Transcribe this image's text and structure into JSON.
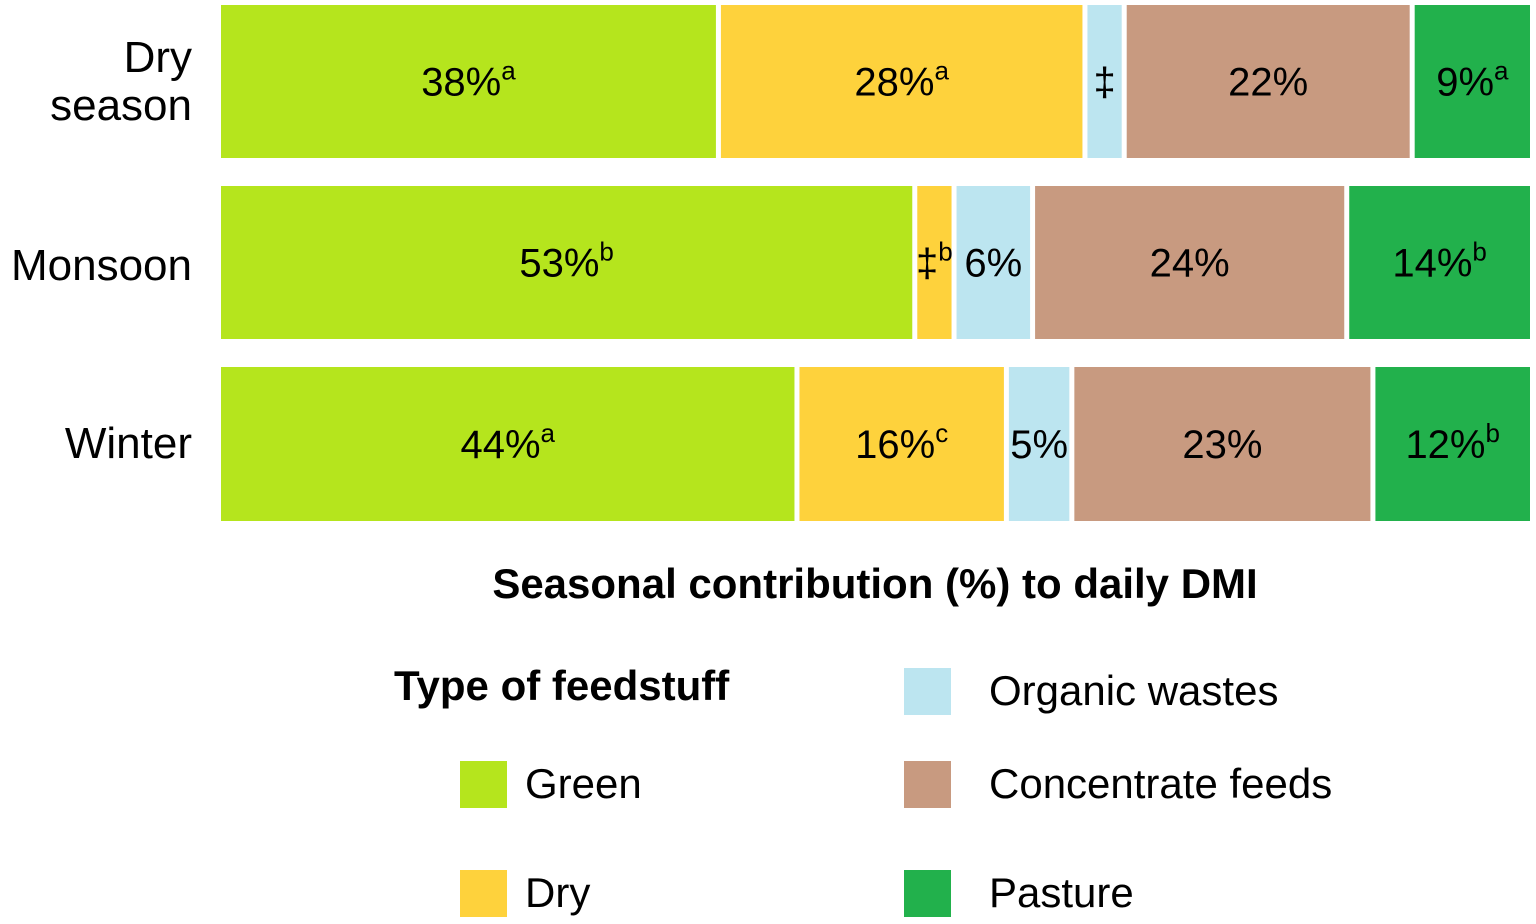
{
  "chart_data": {
    "type": "bar",
    "orientation": "horizontal",
    "stacked": true,
    "normalized_to_100": true,
    "title": "",
    "xlabel": "Seasonal contribution (%) to daily DMI",
    "ylabel": "",
    "xlim": [
      0,
      100
    ],
    "categories": [
      "Dry season",
      "Monsoon",
      "Winter"
    ],
    "category_label_lines": [
      [
        "Dry",
        "season"
      ],
      [
        "Monsoon"
      ],
      [
        "Winter"
      ]
    ],
    "series": [
      {
        "name": "Green",
        "color": "#b5e51d",
        "values": [
          38,
          53,
          44
        ],
        "labels": [
          "38%",
          "53%",
          "44%"
        ],
        "superscripts": [
          "a",
          "b",
          "a"
        ]
      },
      {
        "name": "Dry",
        "color": "#fed23c",
        "values": [
          28,
          3,
          16
        ],
        "labels": [
          "28%",
          "‡",
          "16%"
        ],
        "superscripts": [
          "a",
          "b",
          "c"
        ]
      },
      {
        "name": "Organic wastes",
        "color": "#bce5f0",
        "values": [
          3,
          6,
          5
        ],
        "labels": [
          "‡",
          "6%",
          "5%"
        ],
        "superscripts": [
          "",
          "",
          ""
        ]
      },
      {
        "name": "Concentrate feeds",
        "color": "#c89a80",
        "values": [
          22,
          24,
          23
        ],
        "labels": [
          "22%",
          "24%",
          "23%"
        ],
        "superscripts": [
          "",
          "",
          ""
        ]
      },
      {
        "name": "Pasture",
        "color": "#22b14c",
        "values": [
          9,
          14,
          12
        ],
        "labels": [
          "9%",
          "14%",
          "12%"
        ],
        "superscripts": [
          "a",
          "b",
          "b"
        ]
      }
    ],
    "footnote_symbol": "‡"
  },
  "legend": {
    "title": "Type of feedstuff",
    "items": [
      {
        "label": "Green",
        "color": "#b5e51d"
      },
      {
        "label": "Dry",
        "color": "#fed23c"
      },
      {
        "label": "Organic wastes",
        "color": "#bce5f0"
      },
      {
        "label": "Concentrate feeds",
        "color": "#c89a80"
      },
      {
        "label": "Pasture",
        "color": "#22b14c"
      }
    ]
  }
}
